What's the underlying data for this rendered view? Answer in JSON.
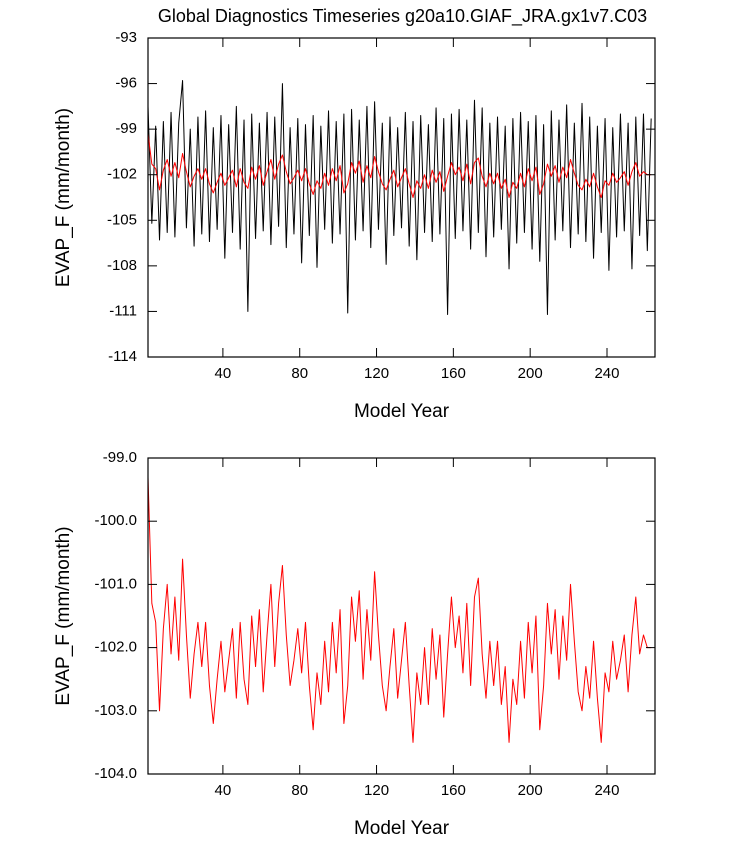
{
  "chart_data": [
    {
      "type": "line",
      "title": "Global Diagnostics Timeseries g20a10.GIAF_JRA.gx1v7.C03",
      "x_label": "Model Year",
      "y_label": "EVAP_F (mm/month)",
      "xlim": [
        1,
        265
      ],
      "xticks": [
        40,
        80,
        120,
        160,
        200,
        240
      ],
      "ylim": [
        -114,
        -93
      ],
      "yticks": [
        -114,
        -111,
        -108,
        -105,
        -102,
        -99,
        -96,
        -93
      ],
      "x": [
        1,
        3,
        5,
        7,
        9,
        11,
        13,
        15,
        17,
        19,
        21,
        23,
        25,
        27,
        29,
        31,
        33,
        35,
        37,
        39,
        41,
        43,
        45,
        47,
        49,
        51,
        53,
        55,
        57,
        59,
        61,
        63,
        65,
        67,
        69,
        71,
        73,
        75,
        77,
        79,
        81,
        83,
        85,
        87,
        89,
        91,
        93,
        95,
        97,
        99,
        101,
        103,
        105,
        107,
        109,
        111,
        113,
        115,
        117,
        119,
        121,
        123,
        125,
        127,
        129,
        131,
        133,
        135,
        137,
        139,
        141,
        143,
        145,
        147,
        149,
        151,
        153,
        155,
        157,
        159,
        161,
        163,
        165,
        167,
        169,
        171,
        173,
        175,
        177,
        179,
        181,
        183,
        185,
        187,
        189,
        191,
        193,
        195,
        197,
        199,
        201,
        203,
        205,
        207,
        209,
        211,
        213,
        215,
        217,
        219,
        221,
        223,
        225,
        227,
        229,
        231,
        233,
        235,
        237,
        239,
        241,
        243,
        245,
        247,
        249,
        251,
        253,
        255,
        257,
        259,
        261,
        263
      ],
      "series": [
        {
          "color": "#000000",
          "values": [
            -97.5,
            -105.2,
            -98.8,
            -106.3,
            -98.5,
            -105.8,
            -97.9,
            -106.1,
            -98.6,
            -95.8,
            -105.5,
            -99.0,
            -106.7,
            -98.2,
            -105.9,
            -97.8,
            -106.4,
            -98.9,
            -105.6,
            -98.1,
            -107.5,
            -98.7,
            -105.8,
            -97.5,
            -106.9,
            -98.4,
            -111.0,
            -98.0,
            -106.2,
            -98.6,
            -105.7,
            -97.9,
            -106.6,
            -98.2,
            -105.4,
            -96.0,
            -106.8,
            -98.9,
            -105.9,
            -98.3,
            -107.8,
            -98.7,
            -106.0,
            -98.1,
            -108.1,
            -98.8,
            -105.6,
            -97.8,
            -106.5,
            -98.5,
            -105.9,
            -98.0,
            -111.1,
            -97.7,
            -106.3,
            -98.4,
            -105.7,
            -97.5,
            -106.8,
            -97.2,
            -105.6,
            -98.6,
            -107.9,
            -98.2,
            -106.0,
            -98.9,
            -105.5,
            -97.9,
            -106.7,
            -98.5,
            -107.6,
            -98.1,
            -105.8,
            -98.7,
            -106.4,
            -97.6,
            -105.9,
            -98.3,
            -111.2,
            -98.0,
            -106.2,
            -97.7,
            -105.7,
            -98.4,
            -106.9,
            -97.1,
            -105.8,
            -97.6,
            -107.4,
            -98.6,
            -106.1,
            -98.2,
            -105.6,
            -98.8,
            -108.2,
            -98.3,
            -106.5,
            -97.9,
            -105.8,
            -98.5,
            -106.9,
            -98.1,
            -107.7,
            -98.7,
            -111.2,
            -97.8,
            -106.3,
            -98.4,
            -105.7,
            -97.4,
            -106.8,
            -98.6,
            -105.9,
            -97.3,
            -106.4,
            -98.2,
            -107.5,
            -98.8,
            -105.8,
            -98.3,
            -108.3,
            -98.9,
            -106.1,
            -98.0,
            -105.7,
            -98.6,
            -108.2,
            -98.2,
            -106.0,
            -98.0,
            -107.0,
            -98.3
          ]
        },
        {
          "color": "#ff0000",
          "values": [
            -99.3,
            -101.3,
            -101.6,
            -103.0,
            -101.7,
            -101.0,
            -102.1,
            -101.2,
            -102.2,
            -100.6,
            -101.8,
            -102.8,
            -102.1,
            -101.6,
            -102.3,
            -101.6,
            -102.6,
            -103.2,
            -102.5,
            -101.9,
            -102.7,
            -102.2,
            -101.7,
            -102.8,
            -101.6,
            -102.5,
            -102.9,
            -101.5,
            -102.3,
            -101.4,
            -102.7,
            -101.8,
            -101.0,
            -102.3,
            -101.3,
            -100.7,
            -101.8,
            -102.6,
            -102.2,
            -101.7,
            -102.4,
            -101.6,
            -102.6,
            -103.3,
            -102.4,
            -102.9,
            -101.9,
            -102.7,
            -101.6,
            -102.4,
            -101.4,
            -103.2,
            -102.6,
            -101.2,
            -101.9,
            -101.1,
            -102.5,
            -101.4,
            -102.2,
            -100.8,
            -101.8,
            -102.6,
            -103.0,
            -102.3,
            -101.7,
            -102.8,
            -102.2,
            -101.6,
            -102.6,
            -103.5,
            -102.4,
            -102.9,
            -102.0,
            -102.9,
            -101.7,
            -102.5,
            -101.8,
            -103.1,
            -102.1,
            -101.2,
            -102.0,
            -101.5,
            -102.4,
            -101.3,
            -102.6,
            -101.2,
            -100.9,
            -102.1,
            -102.8,
            -101.9,
            -102.6,
            -101.9,
            -102.9,
            -102.3,
            -103.5,
            -102.5,
            -102.9,
            -101.9,
            -102.8,
            -101.6,
            -102.4,
            -101.5,
            -103.3,
            -102.6,
            -101.3,
            -102.1,
            -101.4,
            -102.5,
            -101.5,
            -102.2,
            -101.0,
            -101.9,
            -102.7,
            -103.0,
            -102.3,
            -102.8,
            -101.9,
            -102.8,
            -103.5,
            -102.4,
            -102.7,
            -101.9,
            -102.5,
            -102.2,
            -101.8,
            -102.7,
            -101.8,
            -101.2,
            -102.1,
            -101.8,
            -102.0,
            -102.0
          ]
        }
      ]
    },
    {
      "type": "line",
      "x_label": "Model Year",
      "y_label": "EVAP_F (mm/month)",
      "xlim": [
        1,
        265
      ],
      "xticks": [
        40,
        80,
        120,
        160,
        200,
        240
      ],
      "ylim": [
        -104,
        -99
      ],
      "yticks": [
        {
          "value": -104,
          "label": "-104.0"
        },
        {
          "value": -103,
          "label": "-103.0"
        },
        {
          "value": -102,
          "label": "-102.0"
        },
        {
          "value": -101,
          "label": "-101.0"
        },
        {
          "value": -100,
          "label": "-100.0"
        },
        {
          "value": -99,
          "label": "-99.0"
        }
      ],
      "x": [
        1,
        3,
        5,
        7,
        9,
        11,
        13,
        15,
        17,
        19,
        21,
        23,
        25,
        27,
        29,
        31,
        33,
        35,
        37,
        39,
        41,
        43,
        45,
        47,
        49,
        51,
        53,
        55,
        57,
        59,
        61,
        63,
        65,
        67,
        69,
        71,
        73,
        75,
        77,
        79,
        81,
        83,
        85,
        87,
        89,
        91,
        93,
        95,
        97,
        99,
        101,
        103,
        105,
        107,
        109,
        111,
        113,
        115,
        117,
        119,
        121,
        123,
        125,
        127,
        129,
        131,
        133,
        135,
        137,
        139,
        141,
        143,
        145,
        147,
        149,
        151,
        153,
        155,
        157,
        159,
        161,
        163,
        165,
        167,
        169,
        171,
        173,
        175,
        177,
        179,
        181,
        183,
        185,
        187,
        189,
        191,
        193,
        195,
        197,
        199,
        201,
        203,
        205,
        207,
        209,
        211,
        213,
        215,
        217,
        219,
        221,
        223,
        225,
        227,
        229,
        231,
        233,
        235,
        237,
        239,
        241,
        243,
        245,
        247,
        249,
        251,
        253,
        255,
        257,
        259,
        261,
        263
      ],
      "series": [
        {
          "color": "#ff0000",
          "values": [
            -99.3,
            -101.3,
            -101.6,
            -103.0,
            -101.7,
            -101.0,
            -102.1,
            -101.2,
            -102.2,
            -100.6,
            -101.8,
            -102.8,
            -102.1,
            -101.6,
            -102.3,
            -101.6,
            -102.6,
            -103.2,
            -102.5,
            -101.9,
            -102.7,
            -102.2,
            -101.7,
            -102.8,
            -101.6,
            -102.5,
            -102.9,
            -101.5,
            -102.3,
            -101.4,
            -102.7,
            -101.8,
            -101.0,
            -102.3,
            -101.3,
            -100.7,
            -101.8,
            -102.6,
            -102.2,
            -101.7,
            -102.4,
            -101.6,
            -102.6,
            -103.3,
            -102.4,
            -102.9,
            -101.9,
            -102.7,
            -101.6,
            -102.4,
            -101.4,
            -103.2,
            -102.6,
            -101.2,
            -101.9,
            -101.1,
            -102.5,
            -101.4,
            -102.2,
            -100.8,
            -101.8,
            -102.6,
            -103.0,
            -102.3,
            -101.7,
            -102.8,
            -102.2,
            -101.6,
            -102.6,
            -103.5,
            -102.4,
            -102.9,
            -102.0,
            -102.9,
            -101.7,
            -102.5,
            -101.8,
            -103.1,
            -102.1,
            -101.2,
            -102.0,
            -101.5,
            -102.4,
            -101.3,
            -102.6,
            -101.2,
            -100.9,
            -102.1,
            -102.8,
            -101.9,
            -102.6,
            -101.9,
            -102.9,
            -102.3,
            -103.5,
            -102.5,
            -102.9,
            -101.9,
            -102.8,
            -101.6,
            -102.4,
            -101.5,
            -103.3,
            -102.6,
            -101.3,
            -102.1,
            -101.4,
            -102.5,
            -101.5,
            -102.2,
            -101.0,
            -101.9,
            -102.7,
            -103.0,
            -102.3,
            -102.8,
            -101.9,
            -102.8,
            -103.5,
            -102.4,
            -102.7,
            -101.9,
            -102.5,
            -102.2,
            -101.8,
            -102.7,
            -101.8,
            -101.2,
            -102.1,
            -101.8,
            -102.0,
            -102.0
          ]
        }
      ]
    }
  ]
}
